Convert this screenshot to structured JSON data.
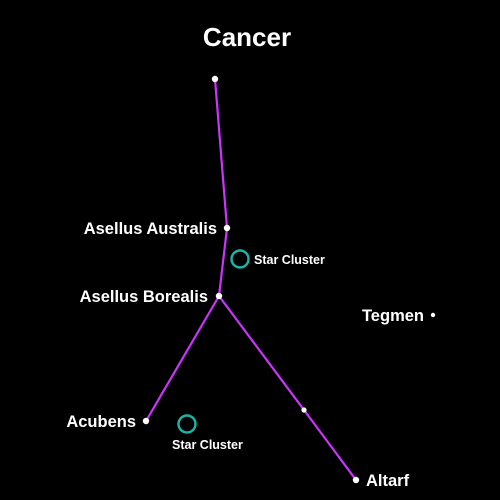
{
  "title": "Cancer",
  "colors": {
    "background": "#000000",
    "line": "#cc33ff",
    "star": "#ffffff",
    "cluster": "#1bb5a8",
    "text": "#ffffff"
  },
  "stars": [
    {
      "id": "top",
      "label": ""
    },
    {
      "id": "asellus-australis",
      "label": "Asellus Australis"
    },
    {
      "id": "asellus-borealis",
      "label": "Asellus Borealis"
    },
    {
      "id": "acubens",
      "label": "Acubens"
    },
    {
      "id": "mid-lower-right",
      "label": ""
    },
    {
      "id": "altarf",
      "label": "Altarf"
    },
    {
      "id": "tegmen",
      "label": "Tegmen"
    }
  ],
  "clusters": [
    {
      "id": "cluster-upper",
      "label": "Star Cluster"
    },
    {
      "id": "cluster-lower",
      "label": "Star Cluster"
    }
  ],
  "lines": [
    [
      "top",
      "asellus-australis"
    ],
    [
      "asellus-australis",
      "asellus-borealis"
    ],
    [
      "asellus-borealis",
      "acubens"
    ],
    [
      "asellus-borealis",
      "mid-lower-right"
    ],
    [
      "mid-lower-right",
      "altarf"
    ]
  ]
}
